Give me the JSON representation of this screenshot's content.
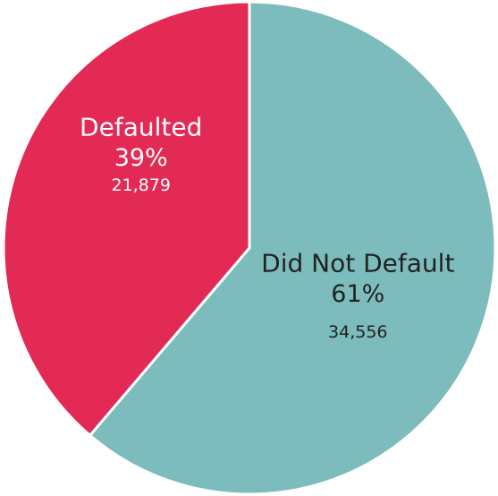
{
  "chart_data": {
    "type": "pie",
    "categories": [
      "Did Not Default",
      "Defaulted"
    ],
    "values": [
      34556,
      21879
    ],
    "value_labels": [
      "34,556",
      "21,879"
    ],
    "percentages": [
      61,
      39
    ],
    "percentage_labels": [
      "61%",
      "39%"
    ],
    "colors": [
      "#7cbcbc",
      "#e32a55"
    ],
    "label_colors": [
      "#222222",
      "#ffffff"
    ]
  }
}
